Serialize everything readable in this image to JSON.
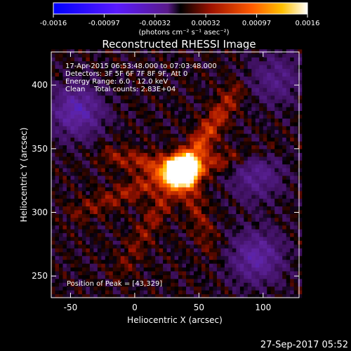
{
  "chart_data": {
    "type": "heatmap",
    "title": "Reconstructed RHESSI Image",
    "header_lines": [
      "17-Apr-2015 06:53:48.000 to 07:03:48.000",
      "Detectors: 3F 5F 6F 7F 8F 9F, Att 0",
      "Energy Range: 6.0 - 12.0 keV",
      "Clean    Total counts: 2.83E+04"
    ],
    "peak_label": "Position of Peak = [43,329]",
    "peak": [
      43,
      329
    ],
    "xlabel": "Heliocentric X (arcsec)",
    "ylabel": "Heliocentric Y (arcsec)",
    "xlim": [
      -65,
      128
    ],
    "ylim": [
      233,
      426
    ],
    "xticks": [
      -50,
      0,
      50,
      100
    ],
    "yticks": [
      250,
      300,
      350,
      400
    ],
    "colorbar": {
      "range": [
        -0.0016,
        0.0016
      ],
      "ticks": [
        "-0.0016",
        "-0.00097",
        "-0.00032",
        "0.00032",
        "0.00097",
        "0.0016"
      ],
      "units": "(photons cm⁻² s⁻¹ asec⁻²)"
    },
    "source": {
      "center": [
        37,
        333
      ],
      "extent_arcsec": 8,
      "peak_value": 0.0016,
      "branches": [
        {
          "to": [
            78,
            395
          ],
          "strength": 0.55
        },
        {
          "to": [
            -20,
            345
          ],
          "strength": 0.45
        },
        {
          "to": [
            -45,
            300
          ],
          "strength": 0.35
        },
        {
          "to": [
            105,
            350
          ],
          "strength": 0.35
        },
        {
          "to": [
            60,
            270
          ],
          "strength": 0.3
        },
        {
          "to": [
            -10,
            255
          ],
          "strength": 0.3
        }
      ],
      "negative_regions": [
        {
          "center": [
            -45,
            380
          ],
          "value": -0.0009
        },
        {
          "center": [
            95,
            330
          ],
          "value": -0.0006
        },
        {
          "center": [
            95,
            265
          ],
          "value": -0.0008
        },
        {
          "center": [
            110,
            405
          ],
          "value": -0.0005
        }
      ]
    }
  },
  "footer": {
    "date": "27-Sep-2017 05:52"
  },
  "colors": {
    "background": "#000000",
    "text": "#ffffff"
  }
}
